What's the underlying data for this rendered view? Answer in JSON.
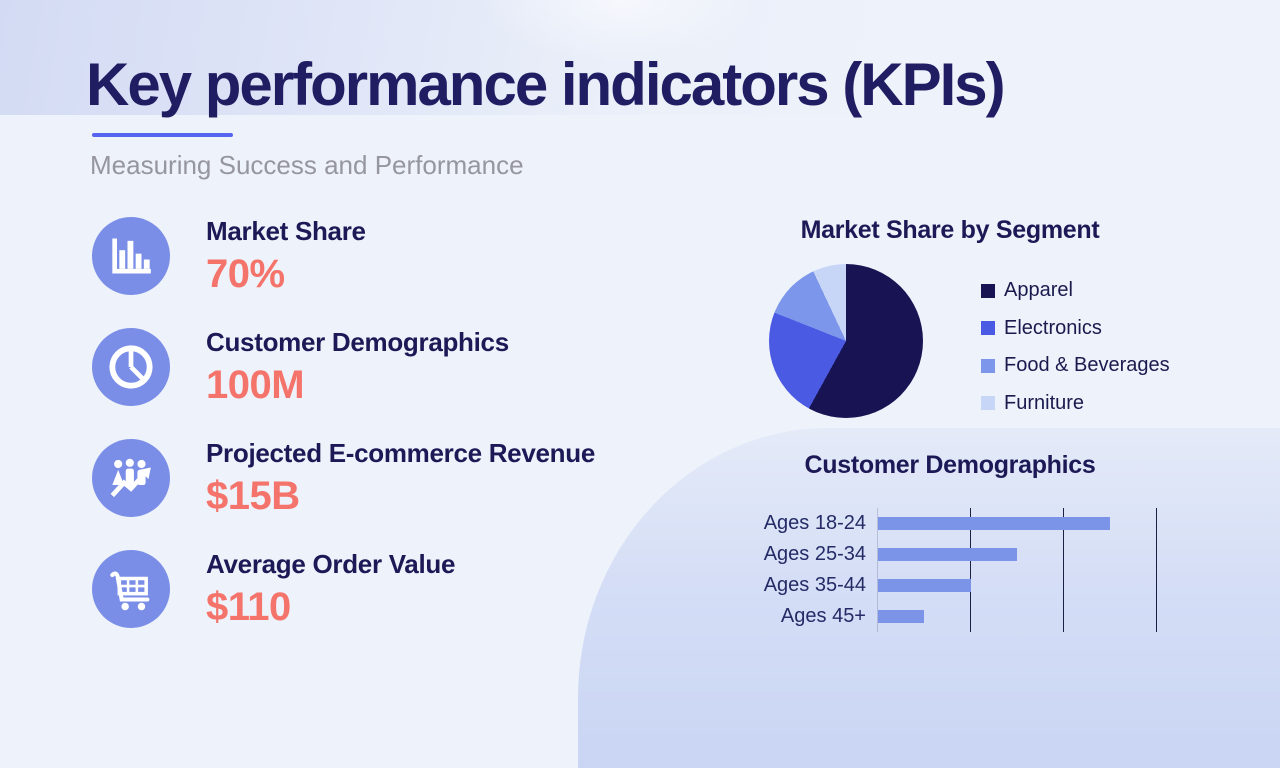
{
  "slide": {
    "title": "Key performance indicators (KPIs)",
    "subtitle": "Measuring Success and Performance"
  },
  "kpis": [
    {
      "icon": "bar-chart-icon",
      "label": "Market Share",
      "value": "70%"
    },
    {
      "icon": "pie-chart-icon",
      "label": "Customer Demographics",
      "value": "100M"
    },
    {
      "icon": "people-growth-icon",
      "label": "Projected E-commerce Revenue",
      "value": "$15B"
    },
    {
      "icon": "shopping-cart-icon",
      "label": "Average Order Value",
      "value": "$110"
    }
  ],
  "colors": {
    "title_navy": "#211D63",
    "subtitle_gray": "#96969E",
    "accent_underline": "#5465EF",
    "kpi_value_coral": "#F4736A",
    "icon_circle_blue": "#7A8EE7",
    "background": "#EEF2FA",
    "band_lavender": "#D3DBF4",
    "blob_lavender": "#C9D5F3"
  },
  "chart_data": [
    {
      "type": "pie",
      "title": "Market Share by Segment",
      "categories": [
        "Apparel",
        "Electronics",
        "Food & Beverages",
        "Furniture"
      ],
      "values": [
        58,
        23,
        12,
        7
      ],
      "unit": "percent",
      "slice_colors": [
        "#181353",
        "#4B5AE3",
        "#7B96EA",
        "#C7D5F7"
      ],
      "start_angle_deg": 0,
      "direction": "clockwise",
      "legend_position": "right"
    },
    {
      "type": "bar",
      "title": "Customer Demographics",
      "orientation": "horizontal",
      "categories": [
        "Ages 18-24",
        "Ages 25-34",
        "Ages 35-44",
        "Ages 45+"
      ],
      "values": [
        50,
        30,
        20,
        10
      ],
      "xlim": [
        0,
        60
      ],
      "gridline_interval": 20,
      "grid": true,
      "bar_color": "#7B94E8",
      "gridline_color": "#1B2144"
    }
  ]
}
